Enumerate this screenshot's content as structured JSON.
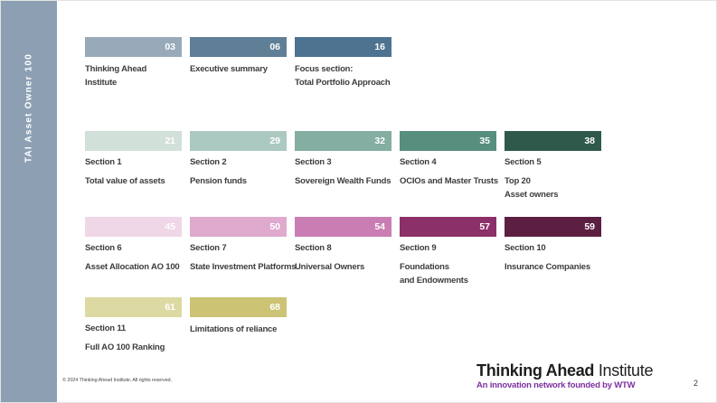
{
  "sidebar": {
    "label": "TAI Asset Owner 100",
    "bg_color": "#8da0b3"
  },
  "toc": {
    "rows": [
      {
        "items": [
          {
            "page": "03",
            "color": "#98aaba",
            "title": "",
            "lines": [
              "Thinking Ahead",
              "Institute"
            ]
          },
          {
            "page": "06",
            "color": "#5f7f97",
            "title": "",
            "lines": [
              "Executive summary"
            ]
          },
          {
            "page": "16",
            "color": "#4e7390",
            "title": "",
            "lines": [
              "Focus section:",
              "Total Portfolio Approach"
            ]
          }
        ]
      },
      {
        "items": [
          {
            "page": "21",
            "color": "#d1e0d9",
            "title": "Section 1",
            "lines": [
              "Total value of assets"
            ]
          },
          {
            "page": "29",
            "color": "#abc9c0",
            "title": "Section 2",
            "lines": [
              "Pension funds"
            ]
          },
          {
            "page": "32",
            "color": "#84aea1",
            "title": "Section 3",
            "lines": [
              "Sovereign Wealth Funds"
            ]
          },
          {
            "page": "35",
            "color": "#578e7e",
            "title": "Section 4",
            "lines": [
              "OCIOs and Master Trusts"
            ]
          },
          {
            "page": "38",
            "color": "#2e594b",
            "title": "Section 5",
            "lines": [
              "Top 20",
              "Asset owners"
            ]
          }
        ]
      },
      {
        "items": [
          {
            "page": "45",
            "color": "#f0d7e7",
            "title": "Section 6",
            "lines": [
              "Asset Allocation AO 100"
            ]
          },
          {
            "page": "50",
            "color": "#dfaace",
            "title": "Section 7",
            "lines": [
              "State Investment Platforms"
            ]
          },
          {
            "page": "54",
            "color": "#ca7db2",
            "title": "Section 8",
            "lines": [
              "Universal Owners"
            ]
          },
          {
            "page": "57",
            "color": "#8c3069",
            "title": "Section 9",
            "lines": [
              "Foundations",
              "and Endowments"
            ]
          },
          {
            "page": "59",
            "color": "#5c1f42",
            "title": "Section 10",
            "lines": [
              "Insurance Companies"
            ]
          }
        ]
      },
      {
        "items": [
          {
            "page": "61",
            "color": "#ddd9a2",
            "title": "Section 11",
            "lines": [
              "Full AO 100 Ranking"
            ]
          },
          {
            "page": "68",
            "color": "#ccc375",
            "title": "",
            "lines": [
              "Limitations of reliance"
            ]
          }
        ]
      }
    ]
  },
  "footer": {
    "copyright": "© 2024 Thinking Ahead Institute. All rights reserved.",
    "logo_bold": "Thinking Ahead",
    "logo_regular": " Institute",
    "logo_subtitle": "An innovation network founded by WTW",
    "subtitle_color": "#7c2fa0",
    "page_number": "2"
  }
}
